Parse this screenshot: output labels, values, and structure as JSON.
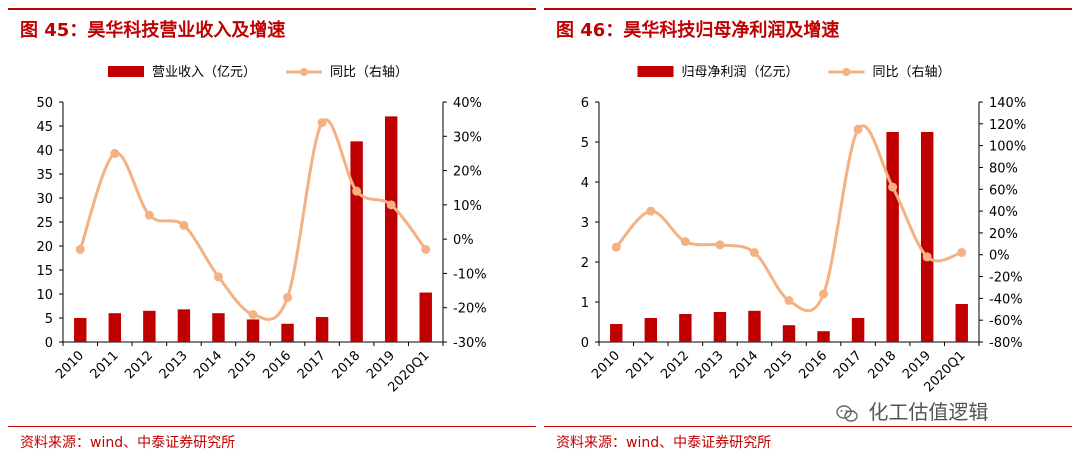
{
  "colors": {
    "accent": "#c00000",
    "bar": "#c00000",
    "line": "#f4b183",
    "axis": "#000000"
  },
  "charts": [
    {
      "title": "图 45：昊华科技营业收入及增速",
      "source": "资料来源：wind、中泰证券研究所",
      "chart_data": {
        "type": "bar",
        "categories": [
          "2010",
          "2011",
          "2012",
          "2013",
          "2014",
          "2015",
          "2016",
          "2017",
          "2018",
          "2019",
          "2020Q1"
        ],
        "series": [
          {
            "name": "营业收入（亿元）",
            "type": "bar",
            "axis": "left",
            "values": [
              5.0,
              6.0,
              6.5,
              6.8,
              6.0,
              4.7,
              3.8,
              5.2,
              41.8,
              47.0,
              10.3
            ]
          },
          {
            "name": "同比（右轴）",
            "type": "line",
            "axis": "right",
            "values": [
              -3,
              25,
              7,
              4,
              -11,
              -22,
              -17,
              34,
              14,
              10,
              -3
            ]
          }
        ],
        "left_axis": {
          "min": 0,
          "max": 50,
          "ticks": [
            "0",
            "5",
            "10",
            "15",
            "20",
            "25",
            "30",
            "35",
            "40",
            "45",
            "50"
          ]
        },
        "right_axis": {
          "min": -30,
          "max": 40,
          "ticks": [
            "-30%",
            "-20%",
            "-10%",
            "0%",
            "10%",
            "20%",
            "30%",
            "40%"
          ]
        },
        "legend": "top-center"
      }
    },
    {
      "title": "图 46：昊华科技归母净利润及增速",
      "source": "资料来源：wind、中泰证券研究所",
      "chart_data": {
        "type": "bar",
        "categories": [
          "2010",
          "2011",
          "2012",
          "2013",
          "2014",
          "2015",
          "2016",
          "2017",
          "2018",
          "2019",
          "2020Q1"
        ],
        "series": [
          {
            "name": "归母净利润（亿元）",
            "type": "bar",
            "axis": "left",
            "values": [
              0.45,
              0.6,
              0.7,
              0.75,
              0.78,
              0.42,
              0.27,
              0.6,
              5.25,
              5.25,
              0.95
            ]
          },
          {
            "name": "同比（右轴）",
            "type": "line",
            "axis": "right",
            "values": [
              7,
              40,
              12,
              9,
              2,
              -42,
              -36,
              115,
              62,
              -2,
              2
            ]
          }
        ],
        "left_axis": {
          "min": 0,
          "max": 6,
          "ticks": [
            "0",
            "1",
            "2",
            "3",
            "4",
            "5",
            "6"
          ]
        },
        "right_axis": {
          "min": -80,
          "max": 140,
          "ticks": [
            "-80%",
            "-60%",
            "-40%",
            "-20%",
            "0%",
            "20%",
            "40%",
            "60%",
            "80%",
            "100%",
            "120%",
            "140%"
          ]
        },
        "legend": "top-center"
      }
    }
  ],
  "watermark": "化工估值逻辑"
}
